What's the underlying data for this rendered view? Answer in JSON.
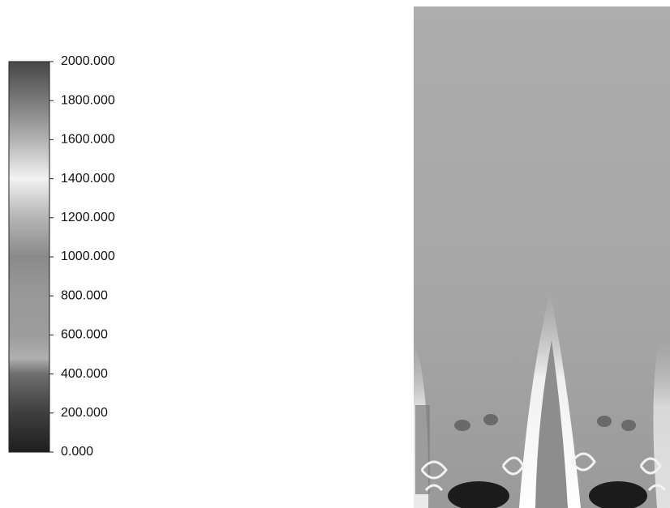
{
  "chart_data": {
    "type": "colorbar",
    "ylim": [
      0,
      2000
    ],
    "yticks": [
      {
        "value": 0,
        "label": "0.000"
      },
      {
        "value": 200,
        "label": "200.000"
      },
      {
        "value": 400,
        "label": "400.000"
      },
      {
        "value": 600,
        "label": "600.000"
      },
      {
        "value": 800,
        "label": "800.000"
      },
      {
        "value": 1000,
        "label": "1000.000"
      },
      {
        "value": 1200,
        "label": "1200.000"
      },
      {
        "value": 1400,
        "label": "1400.000"
      },
      {
        "value": 1600,
        "label": "1600.000"
      },
      {
        "value": 1800,
        "label": "1800.000"
      },
      {
        "value": 2000,
        "label": "2000.000"
      }
    ],
    "colormap": [
      {
        "value": 0,
        "color": "#1e1e1e"
      },
      {
        "value": 200,
        "color": "#3e3e3e"
      },
      {
        "value": 400,
        "color": "#6e6e6e"
      },
      {
        "value": 480,
        "color": "#b0b0b0"
      },
      {
        "value": 600,
        "color": "#9c9c9c"
      },
      {
        "value": 800,
        "color": "#999999"
      },
      {
        "value": 1000,
        "color": "#8a8a8a"
      },
      {
        "value": 1200,
        "color": "#b4b4b4"
      },
      {
        "value": 1400,
        "color": "#f2f2f2"
      },
      {
        "value": 1600,
        "color": "#b2b2b2"
      },
      {
        "value": 1800,
        "color": "#7a7a7a"
      },
      {
        "value": 2000,
        "color": "#474747"
      }
    ]
  }
}
